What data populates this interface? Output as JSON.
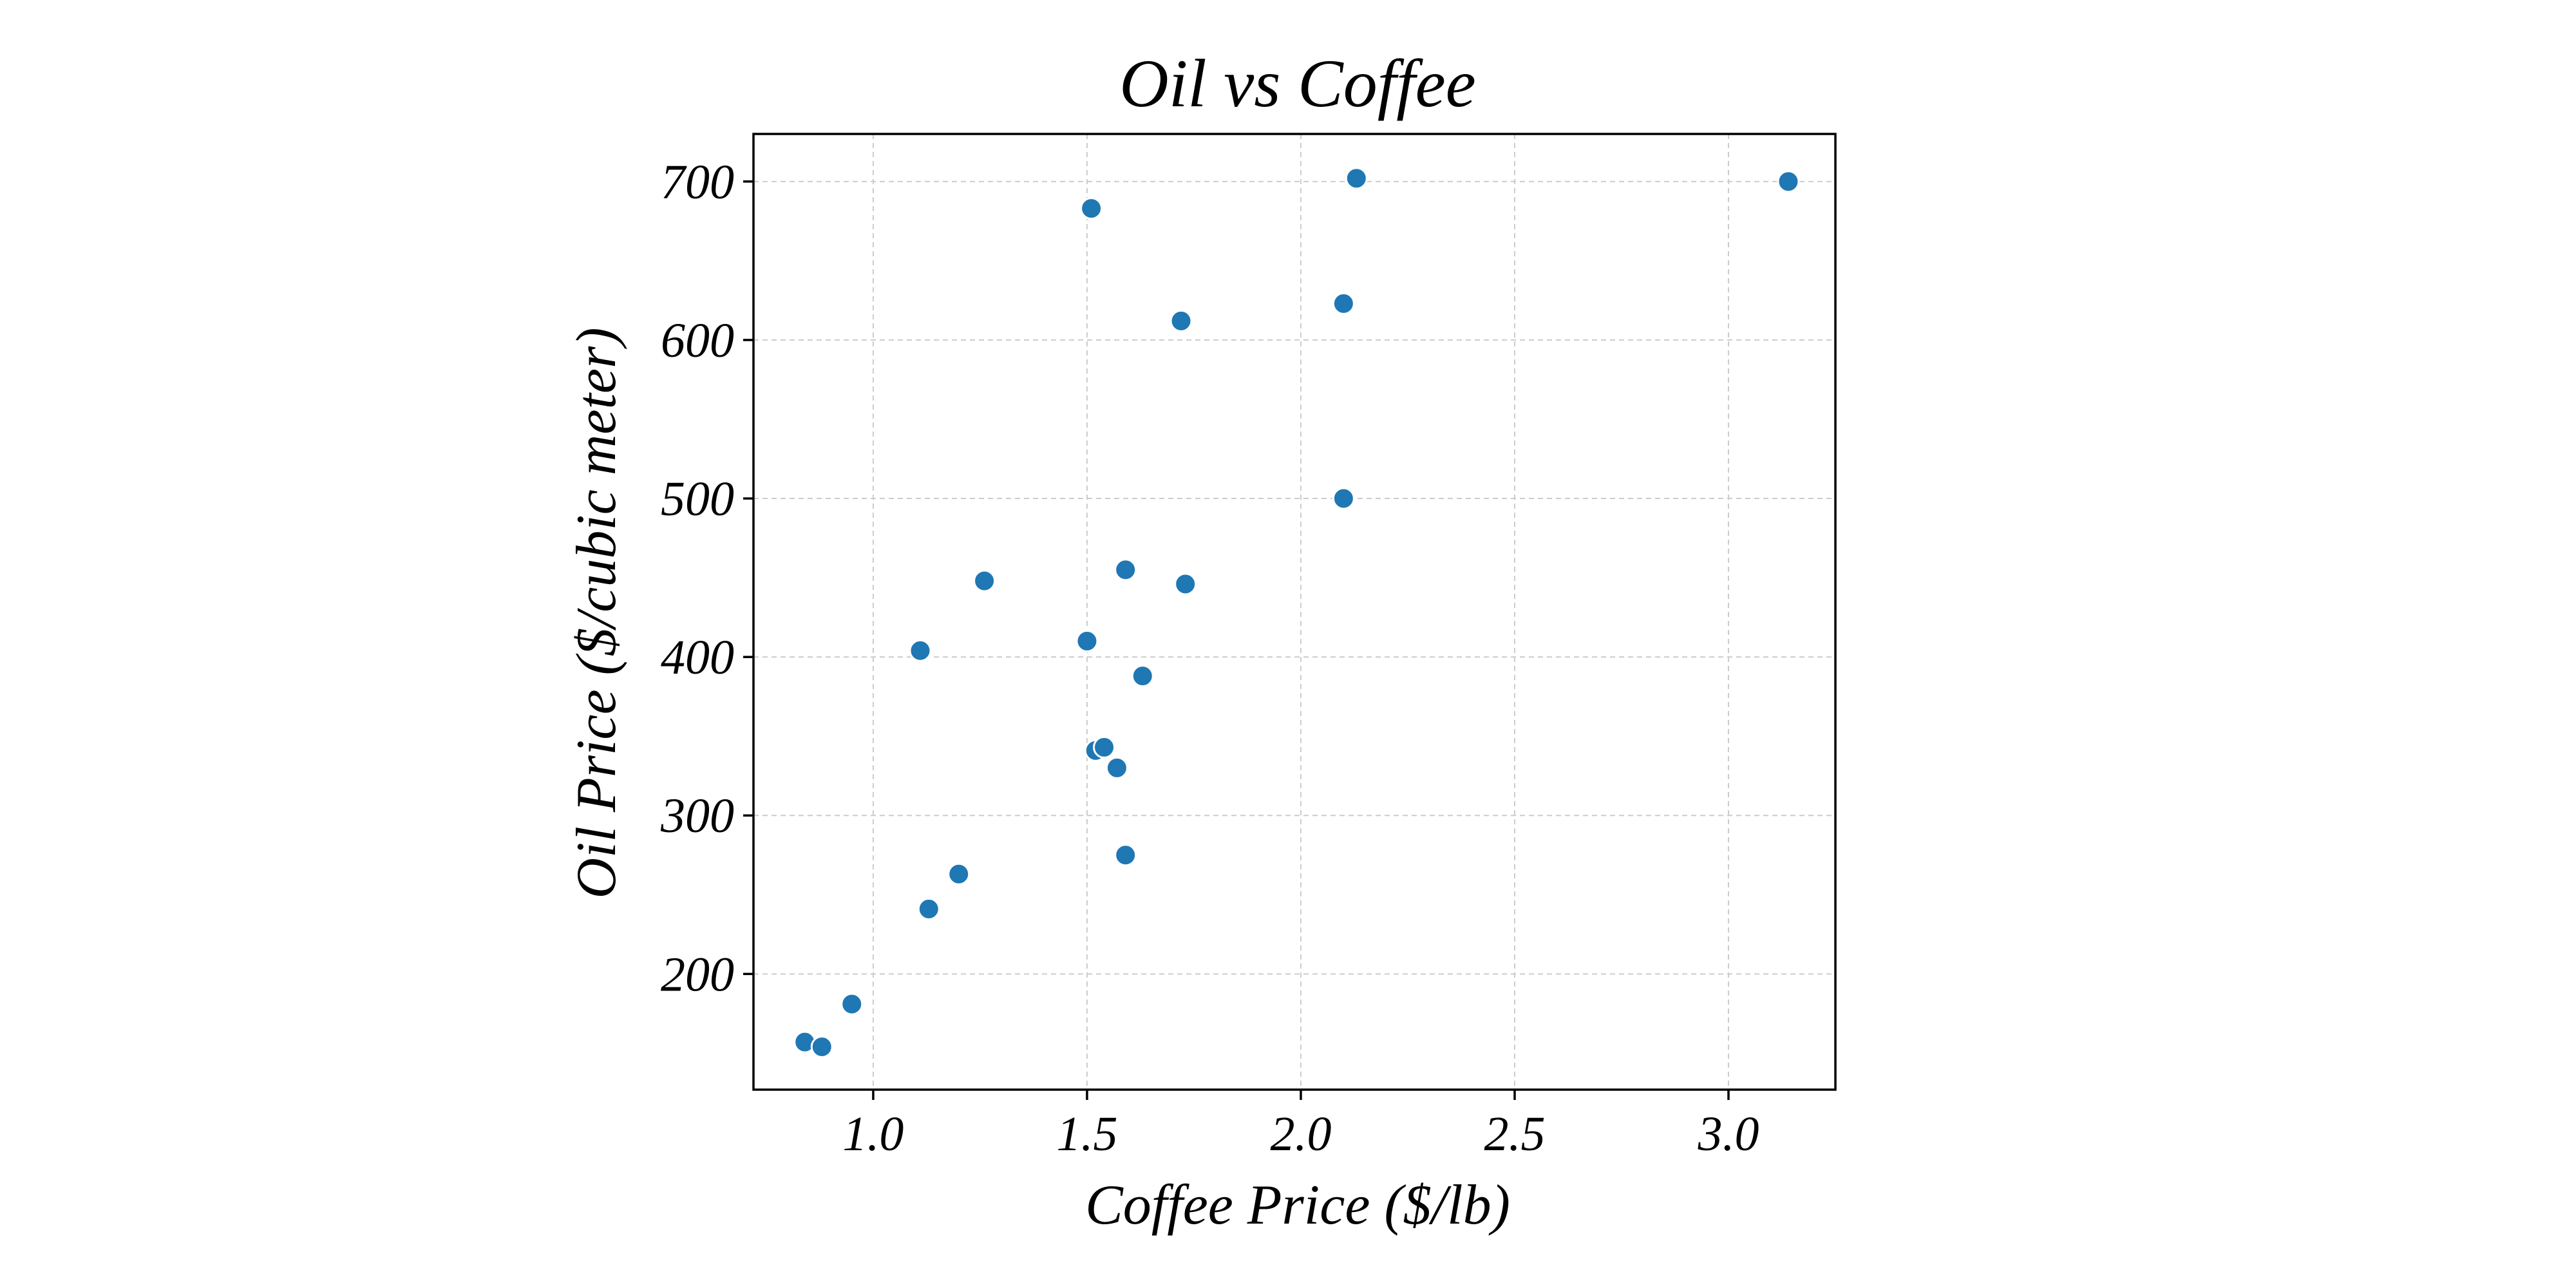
{
  "colors": {
    "point": "#1f77b4",
    "grid": "#cccccc",
    "axis": "#000000"
  },
  "chart_data": {
    "type": "scatter",
    "title": "Oil vs Coffee",
    "xlabel": "Coffee Price ($/lb)",
    "ylabel": "Oil Price ($/cubic meter)",
    "xlim": [
      0.72,
      3.25
    ],
    "ylim": [
      127,
      730
    ],
    "grid": true,
    "xticks": [
      1.0,
      1.5,
      2.0,
      2.5,
      3.0
    ],
    "xtick_labels": [
      "1.0",
      "1.5",
      "2.0",
      "2.5",
      "3.0"
    ],
    "yticks": [
      200,
      300,
      400,
      500,
      600,
      700
    ],
    "ytick_labels": [
      "200",
      "300",
      "400",
      "500",
      "600",
      "700"
    ],
    "points": [
      {
        "x": 0.84,
        "y": 157
      },
      {
        "x": 0.88,
        "y": 154
      },
      {
        "x": 0.95,
        "y": 181
      },
      {
        "x": 1.11,
        "y": 404
      },
      {
        "x": 1.13,
        "y": 241
      },
      {
        "x": 1.2,
        "y": 263
      },
      {
        "x": 1.26,
        "y": 448
      },
      {
        "x": 1.5,
        "y": 410
      },
      {
        "x": 1.51,
        "y": 683
      },
      {
        "x": 1.52,
        "y": 341
      },
      {
        "x": 1.54,
        "y": 343
      },
      {
        "x": 1.57,
        "y": 330
      },
      {
        "x": 1.59,
        "y": 455
      },
      {
        "x": 1.59,
        "y": 275
      },
      {
        "x": 1.63,
        "y": 388
      },
      {
        "x": 1.72,
        "y": 612
      },
      {
        "x": 1.73,
        "y": 446
      },
      {
        "x": 2.1,
        "y": 623
      },
      {
        "x": 2.1,
        "y": 500
      },
      {
        "x": 2.13,
        "y": 702
      },
      {
        "x": 3.14,
        "y": 700
      }
    ]
  }
}
